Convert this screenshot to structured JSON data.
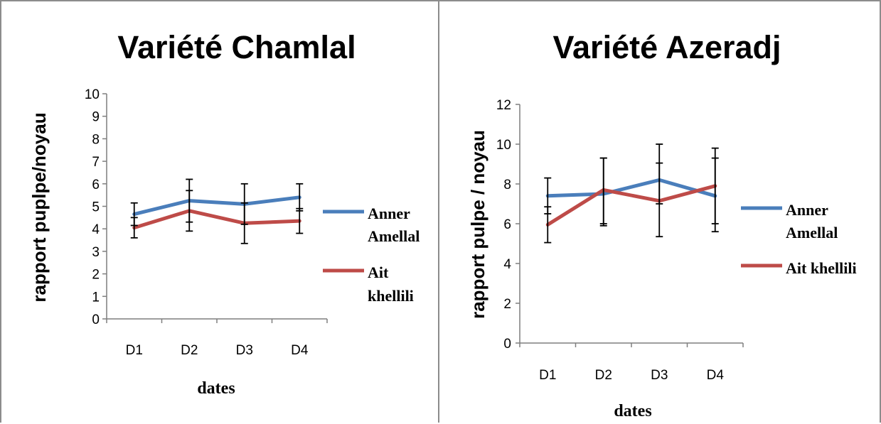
{
  "colors": {
    "series_1": "#4a7ebb",
    "series_2": "#be4b48",
    "axis": "#7f7f7f"
  },
  "chart_data": [
    {
      "type": "line",
      "title": "Variété Chamlal",
      "xlabel": "dates",
      "ylabel": "rapport puplpe/noyau",
      "categories": [
        "D1",
        "D2",
        "D3",
        "D4"
      ],
      "ylim": [
        0,
        10
      ],
      "yticks": [
        "0",
        "1",
        "2",
        "3",
        "4",
        "5",
        "6",
        "7",
        "8",
        "9",
        "10"
      ],
      "grid": false,
      "legend_position": "right",
      "series": [
        {
          "name": "Anner Amellal",
          "legend_lines": [
            "Anner",
            "Amellal"
          ],
          "values": [
            4.65,
            5.25,
            5.1,
            5.4
          ],
          "err_plus": [
            0.5,
            0.95,
            0.9,
            0.6
          ],
          "err_minus": [
            0.5,
            0.95,
            0.9,
            0.6
          ]
        },
        {
          "name": "Ait khellili",
          "legend_lines": [
            "Ait",
            "khellili"
          ],
          "values": [
            4.05,
            4.8,
            4.25,
            4.35
          ],
          "err_plus": [
            0.45,
            0.9,
            0.9,
            0.55
          ],
          "err_minus": [
            0.45,
            0.9,
            0.9,
            0.55
          ]
        }
      ]
    },
    {
      "type": "line",
      "title": "Variété Azeradj",
      "xlabel": "dates",
      "ylabel": "rapport pulpe / noyau",
      "categories": [
        "D1",
        "D2",
        "D3",
        "D4"
      ],
      "ylim": [
        0,
        12
      ],
      "yticks": [
        "0",
        "2",
        "4",
        "6",
        "8",
        "10",
        "12"
      ],
      "grid": false,
      "legend_position": "right",
      "series": [
        {
          "name": "Anner Amellal",
          "legend_lines": [
            "Anner",
            "Amellal"
          ],
          "values": [
            7.4,
            7.5,
            8.2,
            7.4
          ],
          "err_plus": [
            0.9,
            1.8,
            1.8,
            1.9
          ],
          "err_minus": [
            0.9,
            1.5,
            1.2,
            1.4
          ]
        },
        {
          "name": "Ait khellili",
          "legend_lines": [
            "Ait khellili"
          ],
          "values": [
            5.95,
            7.7,
            7.15,
            7.9
          ],
          "err_plus": [
            0.9,
            1.6,
            1.9,
            1.9
          ],
          "err_minus": [
            0.9,
            1.8,
            1.8,
            2.3
          ]
        }
      ]
    }
  ]
}
